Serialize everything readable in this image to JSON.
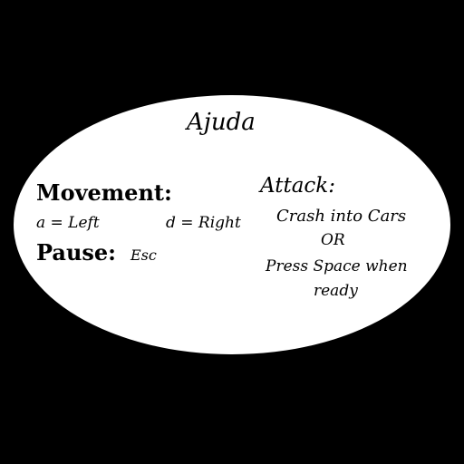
{
  "help": {
    "title": "Ajuda",
    "movement": {
      "heading": "Movement:",
      "left": "a = Left",
      "right": "d = Right"
    },
    "pause": {
      "heading": "Pause:",
      "key": "Esc"
    },
    "attack": {
      "heading": "Attack:",
      "line1": "Crash into Cars",
      "line2": "OR",
      "line3": "Press Space when",
      "line4": "ready"
    }
  },
  "colors": {
    "background": "#000000",
    "panel": "#ffffff",
    "text": "#000000"
  }
}
